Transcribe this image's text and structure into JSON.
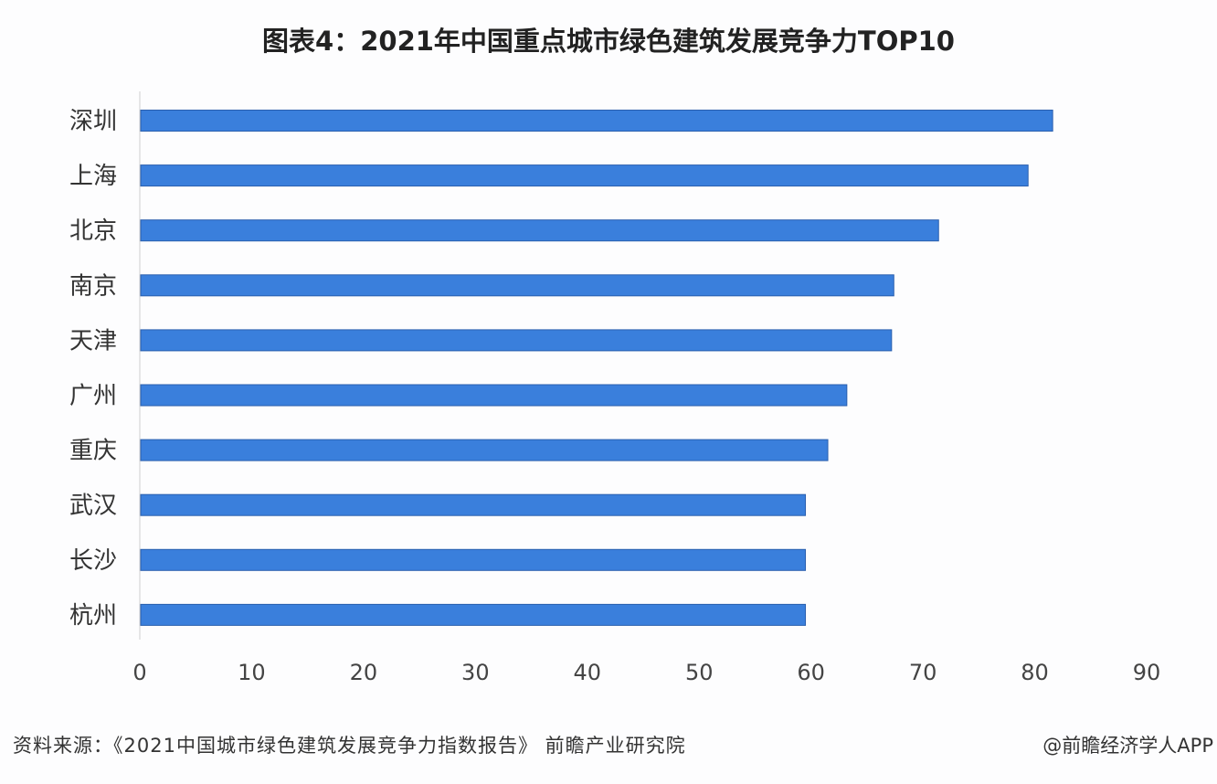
{
  "chart_data": {
    "type": "bar",
    "orientation": "horizontal",
    "title": "图表4：2021年中国重点城市绿色建筑发展竞争力TOP10",
    "categories": [
      "深圳",
      "上海",
      "北京",
      "南京",
      "天津",
      "广州",
      "重庆",
      "武汉",
      "长沙",
      "杭州"
    ],
    "values": [
      81.6,
      79.4,
      71.4,
      67.4,
      67.2,
      63.2,
      61.5,
      59.5,
      59.5,
      59.5
    ],
    "xlim": [
      0,
      90
    ],
    "xticks": [
      "0",
      "10",
      "20",
      "30",
      "40",
      "50",
      "60",
      "70",
      "80",
      "90"
    ],
    "grid": false,
    "bar_color": "#3a7fdc",
    "bar_edge_color": "#2a5fae"
  },
  "footer": {
    "source": "资料来源：《2021中国城市绿色建筑发展竞争力指数报告》 前瞻产业研究院",
    "credit": "@前瞻经济学人APP"
  },
  "watermark": "前瞻产业研究院"
}
